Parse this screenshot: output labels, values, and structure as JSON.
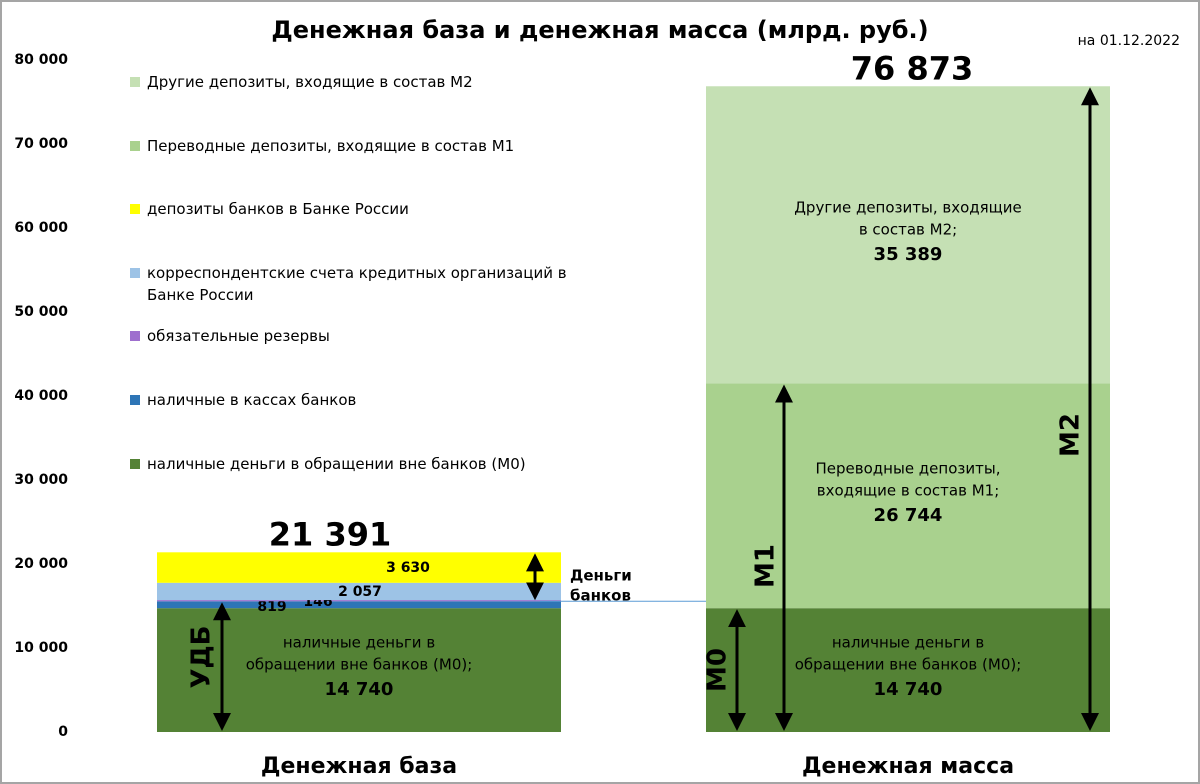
{
  "chart_data": {
    "type": "stacked-bar",
    "title": "Денежная база и денежная масса (млрд. руб.)",
    "date": "на 01.12.2022",
    "categories": [
      "Денежная база",
      "Денежная масса"
    ],
    "series": [
      {
        "name": "наличные деньги в обращении вне банков (М0)",
        "color": "#548235",
        "values": [
          14740,
          14740
        ],
        "value_labels": [
          "14 740",
          "14 740"
        ],
        "inner_text": [
          "наличные деньги в",
          "обращении вне банков (М0);"
        ]
      },
      {
        "name": "наличные в кассах банков",
        "color": "#2e75b6",
        "values": [
          819,
          null
        ]
      },
      {
        "name": "обязательные резервы",
        "color": "#9e6fce",
        "values": [
          146,
          null
        ]
      },
      {
        "name": "корреспондентские счета кредитных организаций в Банке России",
        "color": "#9dc3e6",
        "values": [
          2057,
          null
        ],
        "value_labels": [
          "2 057",
          null
        ]
      },
      {
        "name": "депозиты банков в Банке России",
        "color": "#ffff00",
        "values": [
          3630,
          null
        ],
        "value_labels": [
          "3 630",
          null
        ]
      },
      {
        "name": "Переводные депозиты, входящие в состав М1",
        "color": "#a9d18e",
        "values": [
          null,
          26744
        ],
        "value_labels": [
          null,
          "26 744"
        ],
        "inner_text": [
          "Переводные депозиты,",
          "входящие в состав М1;"
        ]
      },
      {
        "name": "Другие депозиты, входящие в состав М2",
        "color": "#c5e0b4",
        "values": [
          null,
          35389
        ],
        "value_labels": [
          null,
          "35 389"
        ],
        "inner_text": [
          "Другие депозиты, входящие",
          "в состав М2;"
        ]
      }
    ],
    "totals": [
      {
        "value": 21391,
        "label": "21 391"
      },
      {
        "value": 76873,
        "label": "76 873"
      }
    ],
    "ylim": [
      0,
      80000
    ],
    "yticks": [
      0,
      {
        "value": 10000,
        "label": "10 000"
      },
      {
        "value": 20000,
        "label": "20 000"
      },
      {
        "value": 30000,
        "label": "30 000"
      },
      {
        "value": 40000,
        "label": "40 000"
      },
      {
        "value": 50000,
        "label": "50 000"
      },
      {
        "value": 60000,
        "label": "60 000"
      },
      {
        "value": 70000,
        "label": "70 000"
      },
      {
        "value": 80000,
        "label": "80 000"
      }
    ],
    "annotations": {
      "bank_money": [
        "Деньги",
        "банков"
      ],
      "udb": "УДБ",
      "m0": "М0",
      "m1": "М1",
      "m2": "М2"
    }
  }
}
